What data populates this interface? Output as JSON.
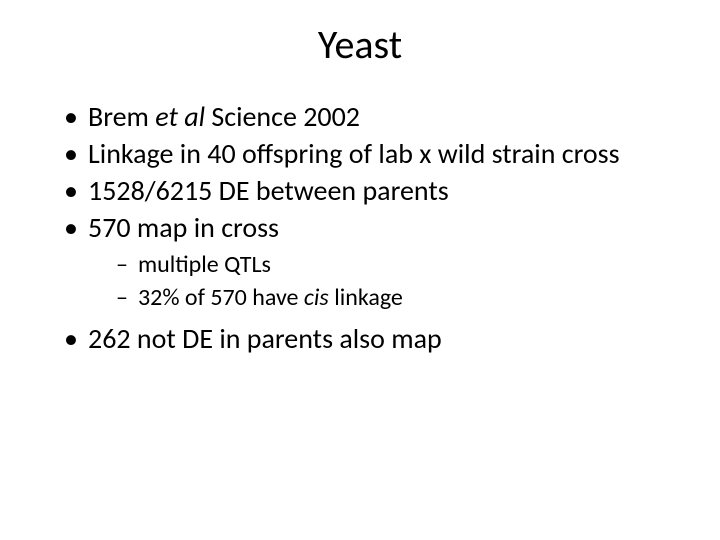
{
  "title": "Yeast",
  "bullets": {
    "b1_pre": "Brem ",
    "b1_italic": "et al",
    "b1_post": " Science 2002",
    "b2": "Linkage in 40 offspring of lab x wild strain cross",
    "b3": "1528/6215 DE between parents",
    "b4": "570 map in cross",
    "b4_sub1": "multiple QTLs",
    "b4_sub2_pre": "32% of 570 have ",
    "b4_sub2_italic": "cis",
    "b4_sub2_post": " linkage",
    "b5": "262 not DE in parents also map"
  },
  "style": {
    "background_color": "#ffffff",
    "text_color": "#000000",
    "title_fontsize": 40,
    "body_fontsize": 28,
    "sub_fontsize": 24,
    "font_family": "Calibri"
  }
}
